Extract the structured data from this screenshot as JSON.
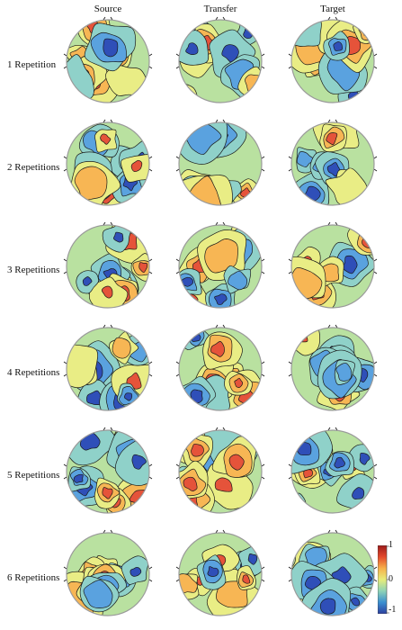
{
  "columns": [
    "Source",
    "Transfer",
    "Target"
  ],
  "rows": [
    "1 Repetition",
    "2 Repetitions",
    "3 Repetitions",
    "4 Repetitions",
    "5 Repetitions",
    "6 Repetitions"
  ],
  "colorbar": {
    "ticks": [
      "1",
      "0",
      "-1"
    ],
    "colors": [
      "#2c3f9e",
      "#3b8fd0",
      "#8ed3b6",
      "#e7ec7a",
      "#f6b04b",
      "#e3492c",
      "#9b1a1a"
    ]
  },
  "palette": {
    "strong_neg": "#2f4fb8",
    "neg": "#5aa2df",
    "mild_neg": "#8fd1c9",
    "neutral": "#b9e1a0",
    "mild_pos": "#e9ed85",
    "pos": "#f7b654",
    "strong_pos": "#e5533a",
    "contour": "#1a1a1a",
    "head_outline": "#9a9a9a"
  }
}
